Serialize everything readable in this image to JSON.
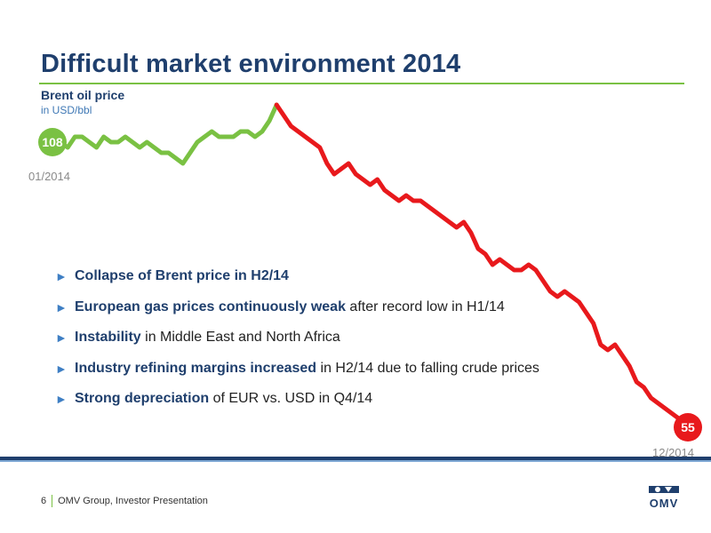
{
  "slide": {
    "title": "Difficult market environment 2014",
    "chart_title": "Brent oil price",
    "chart_unit": "in USD/bbl"
  },
  "chart_data": {
    "type": "line",
    "title": "Brent oil price",
    "ylabel": "in USD/bbl",
    "x_start_label": "01/2014",
    "x_end_label": "12/2014",
    "start_value": 108,
    "end_value": 55,
    "start_label": "108",
    "end_label": "55",
    "ylim": [
      50,
      120
    ],
    "series": [
      {
        "values": [
          108,
          108,
          107,
          109,
          109,
          108,
          107,
          109,
          108,
          108,
          109,
          108,
          107,
          108,
          107,
          106,
          106,
          105,
          104,
          106,
          108,
          109,
          110,
          109,
          109,
          109,
          110,
          110,
          109,
          110,
          112,
          115,
          113,
          111,
          110,
          109,
          108,
          107,
          104,
          102,
          103,
          104,
          102,
          101,
          100,
          101,
          99,
          98,
          97,
          98,
          97,
          97,
          96,
          95,
          94,
          93,
          92,
          93,
          91,
          88,
          87,
          85,
          86,
          85,
          84,
          84,
          85,
          84,
          82,
          80,
          79,
          80,
          79,
          78,
          76,
          74,
          70,
          69,
          70,
          68,
          66,
          63,
          62,
          60,
          59,
          58,
          57,
          56,
          55
        ]
      }
    ],
    "colors": {
      "rise_period": "#7ac143",
      "decline_period": "#e8191c"
    },
    "grid": false,
    "legend": "none"
  },
  "bullets": [
    {
      "bold": "Collapse of Brent price in H2/14",
      "rest": ""
    },
    {
      "bold": "European gas prices continuously weak",
      "rest": " after record low in H1/14"
    },
    {
      "bold": "Instability",
      "rest": " in Middle East and North Africa"
    },
    {
      "bold": "Industry refining margins increased",
      "rest": " in H2/14 due to falling crude prices"
    },
    {
      "bold": "Strong depreciation",
      "rest": " of EUR vs. USD in Q4/14"
    }
  ],
  "footer": {
    "page_number": "6",
    "text": "OMV Group, Investor Presentation",
    "logo_text": "OMV"
  },
  "colors": {
    "brand_blue": "#1f3f6d",
    "accent_green": "#7ac143",
    "accent_red": "#e8191c"
  }
}
